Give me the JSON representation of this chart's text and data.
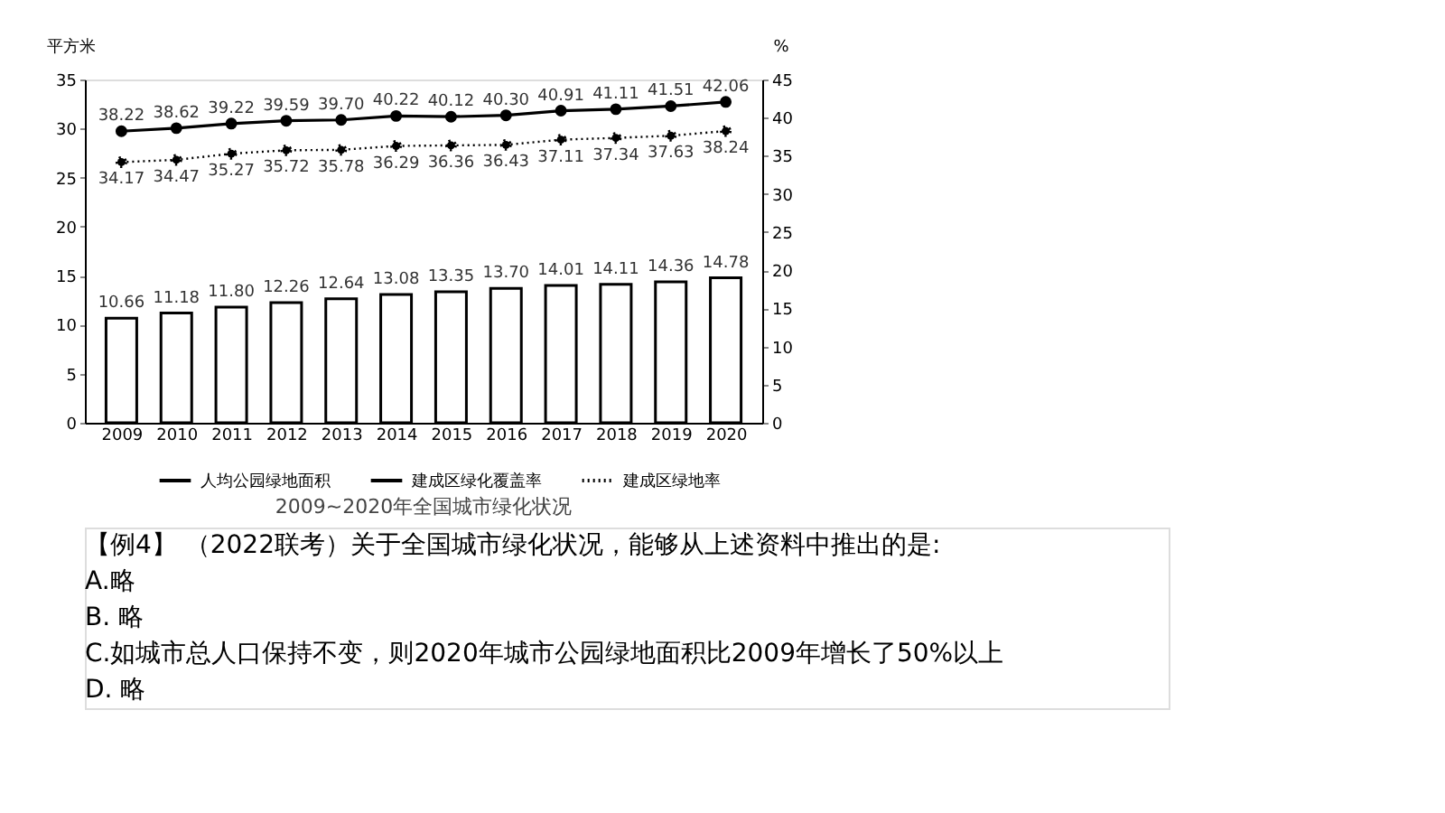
{
  "chart_data": {
    "type": "bar",
    "title": "2009~2020年全国城市绿化状况",
    "ylabel": "平方米",
    "y2label": "%",
    "categories": [
      "2009",
      "2010",
      "2011",
      "2012",
      "2013",
      "2014",
      "2015",
      "2016",
      "2017",
      "2018",
      "2019",
      "2020"
    ],
    "series": [
      {
        "name": "人均公园绿地面积",
        "color": "#ffffff",
        "values": [
          10.66,
          11.18,
          11.8,
          12.26,
          12.64,
          13.08,
          13.35,
          13.7,
          14.01,
          14.11,
          14.36,
          14.78
        ],
        "value_labels": [
          "10.66",
          "11.18",
          "11.80",
          "12.26",
          "12.64",
          "13.08",
          "13.35",
          "13.70",
          "14.01",
          "14.11",
          "14.36",
          "14.78"
        ]
      },
      {
        "name": "建成区绿化覆盖率",
        "type": "line",
        "axis": "y2",
        "color": "#000000",
        "line_style": "solid",
        "marker": "circle",
        "values": [
          38.22,
          38.62,
          39.22,
          39.59,
          39.7,
          40.22,
          40.12,
          40.3,
          40.91,
          41.11,
          41.51,
          42.06
        ],
        "value_labels": [
          "38.22",
          "38.62",
          "39.22",
          "39.59",
          "39.70",
          "40.22",
          "40.12",
          "40.30",
          "40.91",
          "41.11",
          "41.51",
          "42.06"
        ]
      },
      {
        "name": "建成区绿地率",
        "type": "line",
        "axis": "y2",
        "color": "#000000",
        "line_style": "dotted",
        "marker": "circle",
        "values": [
          34.17,
          34.47,
          35.27,
          35.72,
          35.78,
          36.29,
          36.36,
          36.43,
          37.11,
          37.34,
          37.63,
          38.24
        ],
        "value_labels": [
          "34.17",
          "34.47",
          "35.27",
          "35.72",
          "35.78",
          "36.29",
          "36.36",
          "36.43",
          "37.11",
          "37.34",
          "37.63",
          "38.24"
        ]
      }
    ],
    "ylim": [
      0,
      35
    ],
    "yticks": [
      0,
      5,
      10,
      15,
      20,
      25,
      30,
      35
    ],
    "y2lim": [
      0,
      45
    ],
    "y2ticks": [
      0,
      5,
      10,
      15,
      20,
      25,
      30,
      35,
      40,
      45
    ],
    "data_labels": true,
    "grid": false,
    "legend": "bottom",
    "annotations": [
      "【例4】 （2022联考）关于全国城市绿化状况，能够从上述资料中推出的是:",
      "A.略",
      "B. 略",
      "C.如城市总人口保持不变，则2020年城市公园绿地面积比2009年增长了50%以上",
      "D. 略"
    ]
  }
}
